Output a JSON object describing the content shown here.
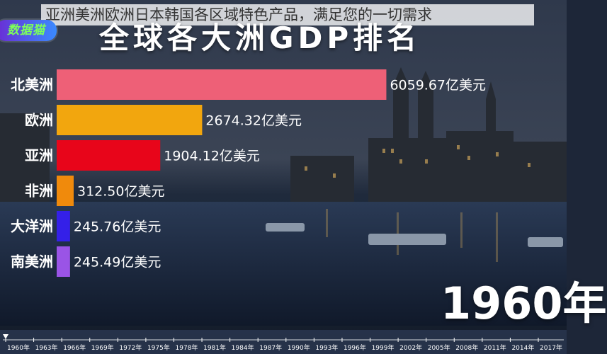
{
  "overlay_caption": "亚洲美洲欧洲日本韩国各区域特色产品，满足您的一切需求",
  "logo_text": "数据猫",
  "title": "全球各大洲GDP排名",
  "year_display": "1960年",
  "value_unit": "亿美元",
  "chart_data": {
    "type": "bar",
    "orientation": "horizontal",
    "title": "全球各大洲GDP排名",
    "categories": [
      "北美洲",
      "欧洲",
      "亚洲",
      "非洲",
      "大洋洲",
      "南美洲"
    ],
    "values": [
      6059.67,
      2674.32,
      1904.12,
      312.5,
      245.76,
      245.49
    ],
    "value_labels": [
      "6059.67亿美元",
      "2674.32亿美元",
      "1904.12亿美元",
      "312.50亿美元",
      "245.76亿美元",
      "245.49亿美元"
    ],
    "colors": [
      "#ee6077",
      "#f2a60e",
      "#e8051a",
      "#f08a0c",
      "#3420e8",
      "#9a54e6"
    ],
    "xlim": [
      0,
      6900
    ],
    "grid": false,
    "legend": "none",
    "timeline_ticks": [
      "1960年",
      "1963年",
      "1966年",
      "1969年",
      "1972年",
      "1975年",
      "1978年",
      "1981年",
      "1984年",
      "1987年",
      "1990年",
      "1993年",
      "1996年",
      "1999年",
      "2002年",
      "2005年",
      "2008年",
      "2011年",
      "2014年",
      "2017年"
    ]
  }
}
